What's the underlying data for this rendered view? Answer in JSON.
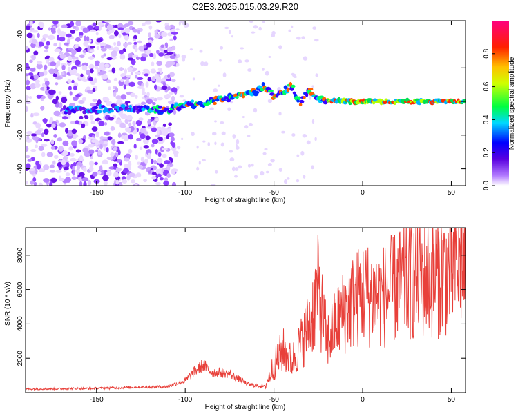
{
  "title": "C2E3.2025.015.03.29.R20",
  "chart_data": [
    {
      "type": "heatmap",
      "xlabel": "Height of straight line (km)",
      "ylabel": "Frequency (Hz)",
      "xlim": [
        -190,
        58
      ],
      "ylim": [
        -50,
        48
      ],
      "xticks": [
        -150,
        -100,
        -50,
        0,
        50
      ],
      "yticks": [
        -40,
        -20,
        0,
        20,
        40
      ],
      "colorbar": {
        "label": "Normalized spectral amplitude",
        "range": [
          0.0,
          1.0
        ],
        "ticks": [
          "0.0",
          "0.2",
          "0.4",
          "0.6",
          "0.8"
        ],
        "colormap": "rainbow (white, violet, blue, cyan, green, yellow, orange, red, magenta)"
      },
      "ridge": {
        "x": [
          -165,
          -150,
          -140,
          -130,
          -120,
          -110,
          -100,
          -90,
          -80,
          -70,
          -60,
          -55,
          -50,
          -45,
          -40,
          -35,
          -30,
          -25,
          -20,
          -10,
          0,
          10,
          20,
          30,
          40,
          50,
          58
        ],
        "y": [
          -5,
          -5,
          -4,
          -4,
          -5,
          -5,
          -2,
          -1,
          1,
          3,
          6,
          9,
          3,
          6,
          9,
          -1,
          7,
          2,
          1,
          0,
          0,
          0,
          0,
          0,
          0,
          0,
          0
        ]
      },
      "grid": false
    },
    {
      "type": "line",
      "xlabel": "Height of straight line (km)",
      "ylabel": "SNR (10 * v/v)",
      "xlim": [
        -190,
        58
      ],
      "ylim": [
        0,
        9600
      ],
      "xticks": [
        -150,
        -100,
        -50,
        0,
        50
      ],
      "yticks": [
        2000,
        4000,
        6000,
        8000
      ],
      "line_color": "#e8403a",
      "series_envelope": {
        "x": [
          -190,
          -150,
          -110,
          -100,
          -95,
          -90,
          -85,
          -80,
          -75,
          -70,
          -65,
          -60,
          -55,
          -50,
          -45,
          -40,
          -35,
          -30,
          -25,
          -20,
          -15,
          -10,
          0,
          10,
          20,
          30,
          40,
          50,
          55,
          58
        ],
        "y": [
          200,
          250,
          350,
          700,
          1200,
          1600,
          1200,
          1150,
          1100,
          800,
          500,
          400,
          350,
          1600,
          2500,
          1800,
          2800,
          4000,
          6000,
          3000,
          4000,
          4800,
          5800,
          5500,
          6200,
          6600,
          6800,
          7200,
          7800,
          7000
        ]
      },
      "grid": false
    }
  ]
}
